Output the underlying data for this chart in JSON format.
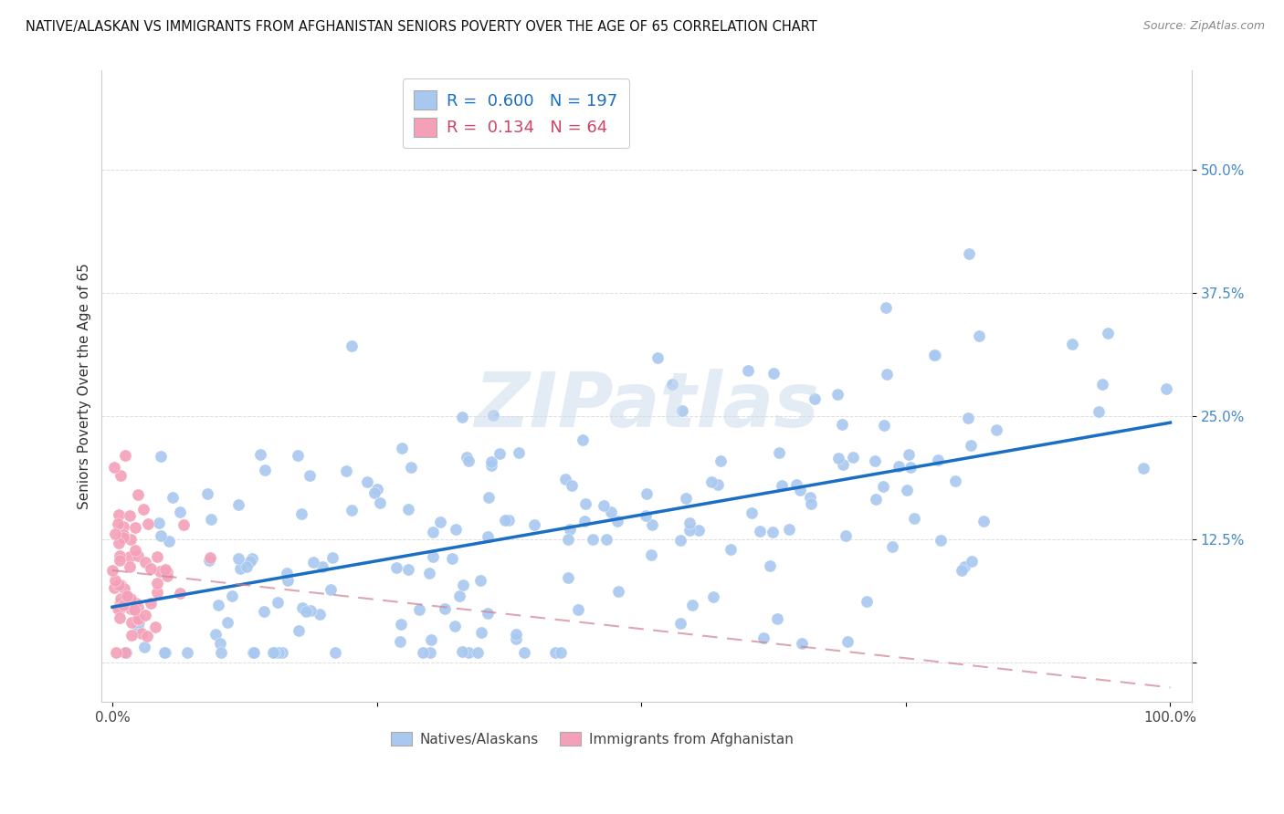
{
  "title": "NATIVE/ALASKAN VS IMMIGRANTS FROM AFGHANISTAN SENIORS POVERTY OVER THE AGE OF 65 CORRELATION CHART",
  "source": "Source: ZipAtlas.com",
  "ylabel": "Seniors Poverty Over the Age of 65",
  "native_R": 0.6,
  "native_N": 197,
  "afghan_R": 0.134,
  "afghan_N": 64,
  "native_color": "#a8c8f0",
  "afghan_color": "#f4a0b8",
  "native_line_color": "#1a6fc4",
  "afghan_line_color": "#d08090",
  "watermark": "ZIPatlas",
  "legend_label_native": "Natives/Alaskans",
  "legend_label_afghan": "Immigrants from Afghanistan",
  "ytick_color": "#4488cc",
  "xtick_color": "#444444"
}
